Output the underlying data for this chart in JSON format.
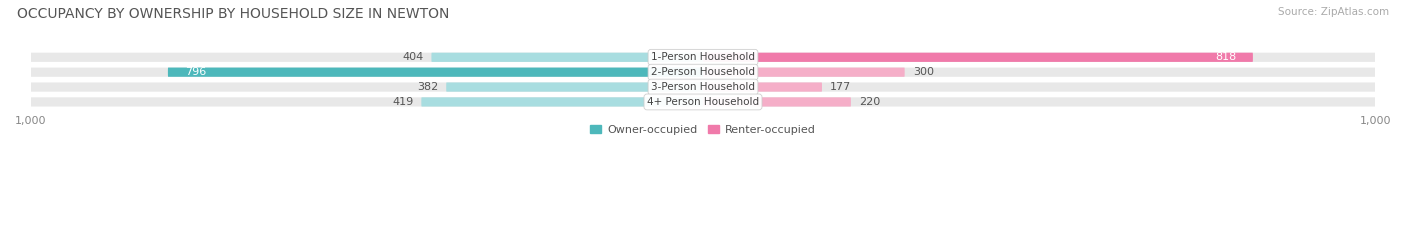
{
  "title": "OCCUPANCY BY OWNERSHIP BY HOUSEHOLD SIZE IN NEWTON",
  "source": "Source: ZipAtlas.com",
  "categories": [
    "1-Person Household",
    "2-Person Household",
    "3-Person Household",
    "4+ Person Household"
  ],
  "owner_values": [
    404,
    796,
    382,
    419
  ],
  "renter_values": [
    818,
    300,
    177,
    220
  ],
  "owner_color": "#4db8bb",
  "renter_color": "#f07aaa",
  "owner_color_light": "#a8dde0",
  "renter_color_light": "#f5aec8",
  "owner_label": "Owner-occupied",
  "renter_label": "Renter-occupied",
  "xlim": 1000,
  "bar_height": 0.62,
  "background_color": "#ffffff",
  "bar_bg_color": "#e8e8e8",
  "title_fontsize": 10,
  "source_fontsize": 7.5,
  "value_fontsize": 8,
  "axis_label_fontsize": 8,
  "category_fontsize": 7.5,
  "legend_fontsize": 8
}
